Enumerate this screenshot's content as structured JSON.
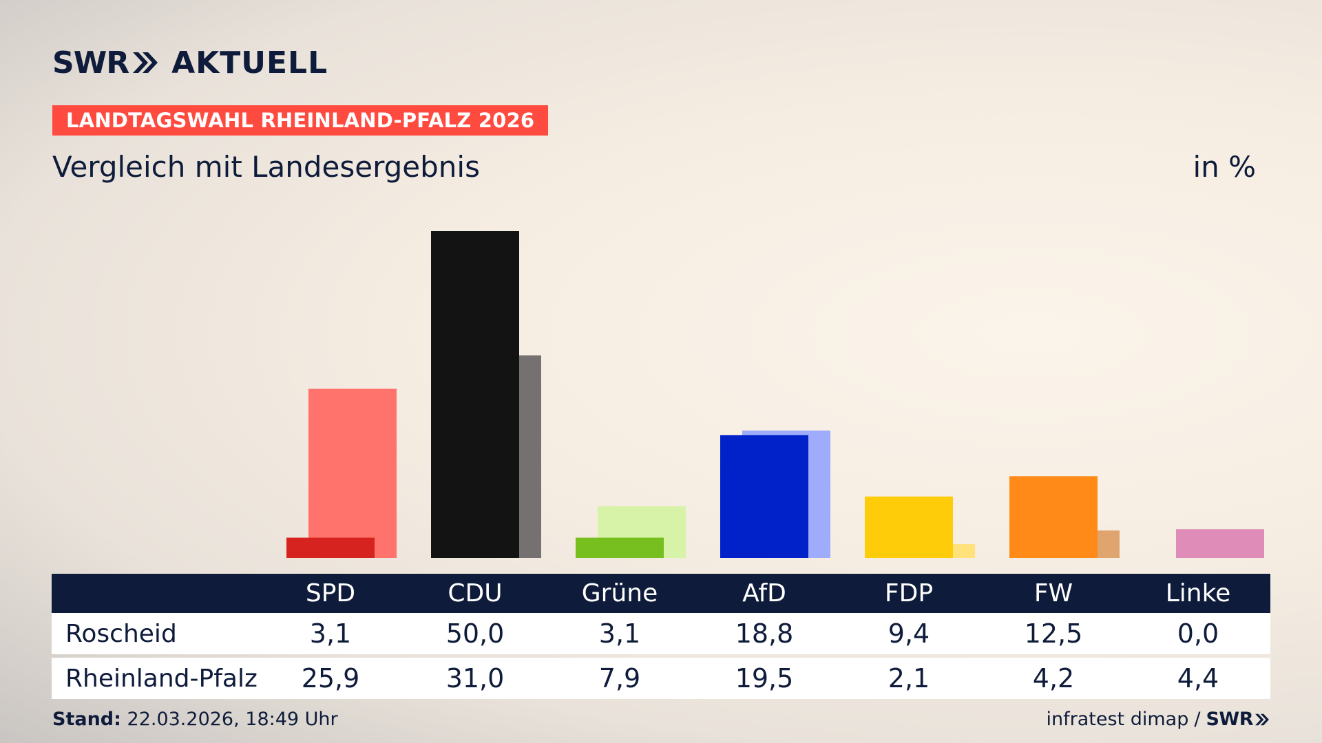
{
  "header": {
    "logo_left": "SWR",
    "logo_right": "AKTUELL",
    "badge": "LANDTAGSWAHL RHEINLAND-PFALZ 2026",
    "subtitle": "Vergleich mit Landesergebnis",
    "unit": "in %"
  },
  "chart_data": {
    "type": "bar",
    "categories": [
      "SPD",
      "CDU",
      "Grüne",
      "AfD",
      "FDP",
      "FW",
      "Linke"
    ],
    "series": [
      {
        "name": "Roscheid",
        "values": [
          3.1,
          50.0,
          3.1,
          18.8,
          9.4,
          12.5,
          0.0
        ],
        "display": [
          "3,1",
          "50,0",
          "3,1",
          "18,8",
          "9,4",
          "12,5",
          "0,0"
        ]
      },
      {
        "name": "Rheinland-Pfalz",
        "values": [
          25.9,
          31.0,
          7.9,
          19.5,
          2.1,
          4.2,
          4.4
        ],
        "display": [
          "25,9",
          "31,0",
          "7,9",
          "19,5",
          "2,1",
          "4,2",
          "4,4"
        ]
      }
    ],
    "colors_local": [
      "#d7231f",
      "#131313",
      "#77bf1e",
      "#0022c8",
      "#ffcc0a",
      "#ff8a17",
      "#e08cb8"
    ],
    "colors_state": [
      "#ff736c",
      "#757170",
      "#d6f3a8",
      "#9fabfb",
      "#ffe27a",
      "#e0a56f",
      "#e08cb8"
    ],
    "ylim": [
      0,
      50
    ]
  },
  "footer": {
    "stand_label": "Stand:",
    "stand_value": "22.03.2026, 18:49 Uhr",
    "source": "infratest dimap",
    "separator": "/",
    "source_brand": "SWR"
  }
}
